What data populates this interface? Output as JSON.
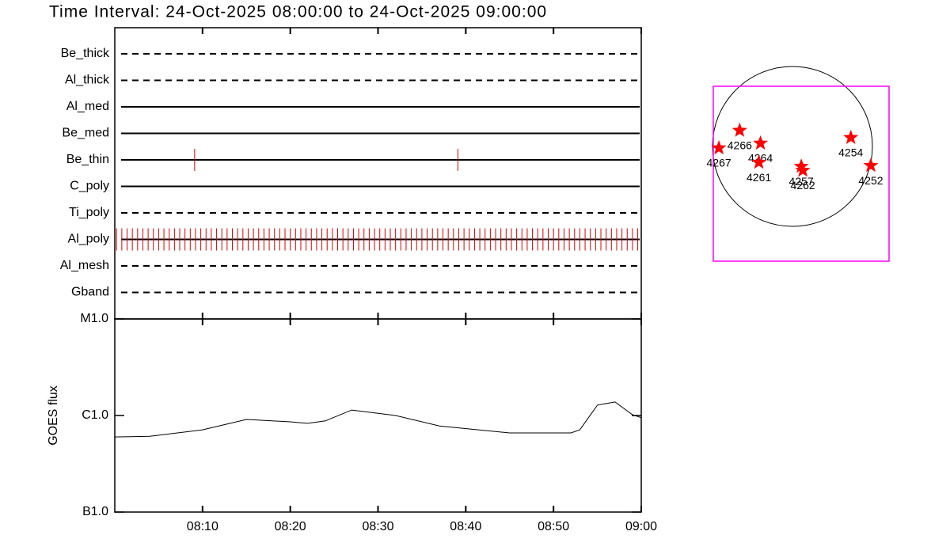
{
  "title": "Time Interval: 24-Oct-2025 08:00:00 to 24-Oct-2025 09:00:00",
  "chart_data": [
    {
      "type": "timeline",
      "categories": [
        "Be_thick",
        "Al_thick",
        "Al_med",
        "Be_med",
        "Be_thin",
        "C_poly",
        "Ti_poly",
        "Al_poly",
        "Al_mesh",
        "Gband"
      ],
      "line_styles": [
        "dashed",
        "dashed",
        "solid",
        "solid",
        "solid",
        "solid",
        "dashed",
        "solid",
        "dashed",
        "dashed"
      ],
      "color": "#e00000",
      "xlim": [
        0,
        60
      ],
      "xticks": [
        {
          "value": 10,
          "label": "08:10"
        },
        {
          "value": 20,
          "label": "08:20"
        },
        {
          "value": 30,
          "label": "08:30"
        },
        {
          "value": 40,
          "label": "08:40"
        },
        {
          "value": 50,
          "label": "08:50"
        },
        {
          "value": 60,
          "label": "09:00"
        }
      ],
      "events": [
        {
          "category": "Be_thin",
          "x": [
            9.1,
            39.1
          ]
        },
        {
          "category": "Al_poly",
          "x": [
            0.2,
            0.8,
            1.4,
            2.0,
            2.6,
            3.2,
            3.8,
            4.4,
            5.0,
            5.6,
            6.2,
            6.8,
            7.4,
            8.0,
            8.6,
            9.2,
            9.8,
            10.4,
            11.0,
            11.6,
            12.2,
            12.8,
            13.4,
            14.0,
            14.6,
            15.2,
            15.8,
            16.4,
            17.0,
            17.6,
            18.2,
            18.8,
            19.4,
            20.0,
            20.6,
            21.2,
            21.8,
            22.4,
            23.0,
            23.6,
            24.2,
            24.8,
            25.4,
            26.0,
            26.6,
            27.2,
            27.8,
            28.4,
            29.0,
            29.6,
            30.2,
            30.8,
            31.4,
            32.0,
            32.6,
            33.2,
            33.8,
            34.4,
            35.0,
            35.6,
            36.2,
            36.8,
            37.4,
            38.0,
            38.6,
            39.2,
            39.8,
            40.4,
            41.0,
            41.6,
            42.2,
            42.8,
            43.4,
            44.0,
            44.6,
            45.2,
            45.8,
            46.4,
            47.0,
            47.6,
            48.2,
            48.8,
            49.4,
            50.0,
            50.6,
            51.2,
            51.8,
            52.4,
            53.0,
            53.6,
            54.2,
            54.8,
            55.4,
            56.0,
            56.6,
            57.2,
            57.8,
            58.4,
            59.0,
            59.6
          ]
        }
      ]
    },
    {
      "type": "line",
      "y_label": "GOES flux",
      "log_scale": true,
      "color": "#000000",
      "x": [
        0,
        4,
        10,
        15,
        20,
        22,
        24,
        27,
        32,
        37,
        45,
        52,
        53,
        55,
        57,
        59,
        60
      ],
      "values": [
        6e-07,
        6.1e-07,
        7.1e-07,
        9.1e-07,
        8.6e-07,
        8.3e-07,
        8.8e-07,
        1.14e-06,
        1e-06,
        7.8e-07,
        6.6e-07,
        6.6e-07,
        7.1e-07,
        1.28e-06,
        1.38e-06,
        1.02e-06,
        9.5e-07
      ],
      "xlim": [
        0,
        60
      ],
      "xticks": [
        {
          "value": 10,
          "label": "08:10"
        },
        {
          "value": 20,
          "label": "08:20"
        },
        {
          "value": 30,
          "label": "08:30"
        },
        {
          "value": 40,
          "label": "08:40"
        },
        {
          "value": 50,
          "label": "08:50"
        },
        {
          "value": 60,
          "label": "09:00"
        }
      ],
      "ylim": [
        1e-07,
        1e-05
      ],
      "yticks": [
        {
          "value": 1e-07,
          "label": "B1.0"
        },
        {
          "value": 1e-06,
          "label": "C1.0"
        },
        {
          "value": 1e-05,
          "label": "M1.0"
        }
      ]
    },
    {
      "type": "scatter",
      "color": "#ff0000",
      "box_color": "#ff00ff",
      "labels": [
        "4267",
        "4266",
        "4264",
        "4261",
        "4257",
        "4262",
        "4254",
        "4252"
      ],
      "x": [
        -0.92,
        -0.66,
        -0.4,
        -0.42,
        0.11,
        0.13,
        0.73,
        0.98
      ],
      "values": [
        -0.02,
        0.2,
        0.04,
        -0.2,
        -0.25,
        -0.3,
        0.11,
        -0.24
      ],
      "xlim": [
        -1,
        1
      ],
      "ylim": [
        -1,
        1
      ]
    }
  ]
}
